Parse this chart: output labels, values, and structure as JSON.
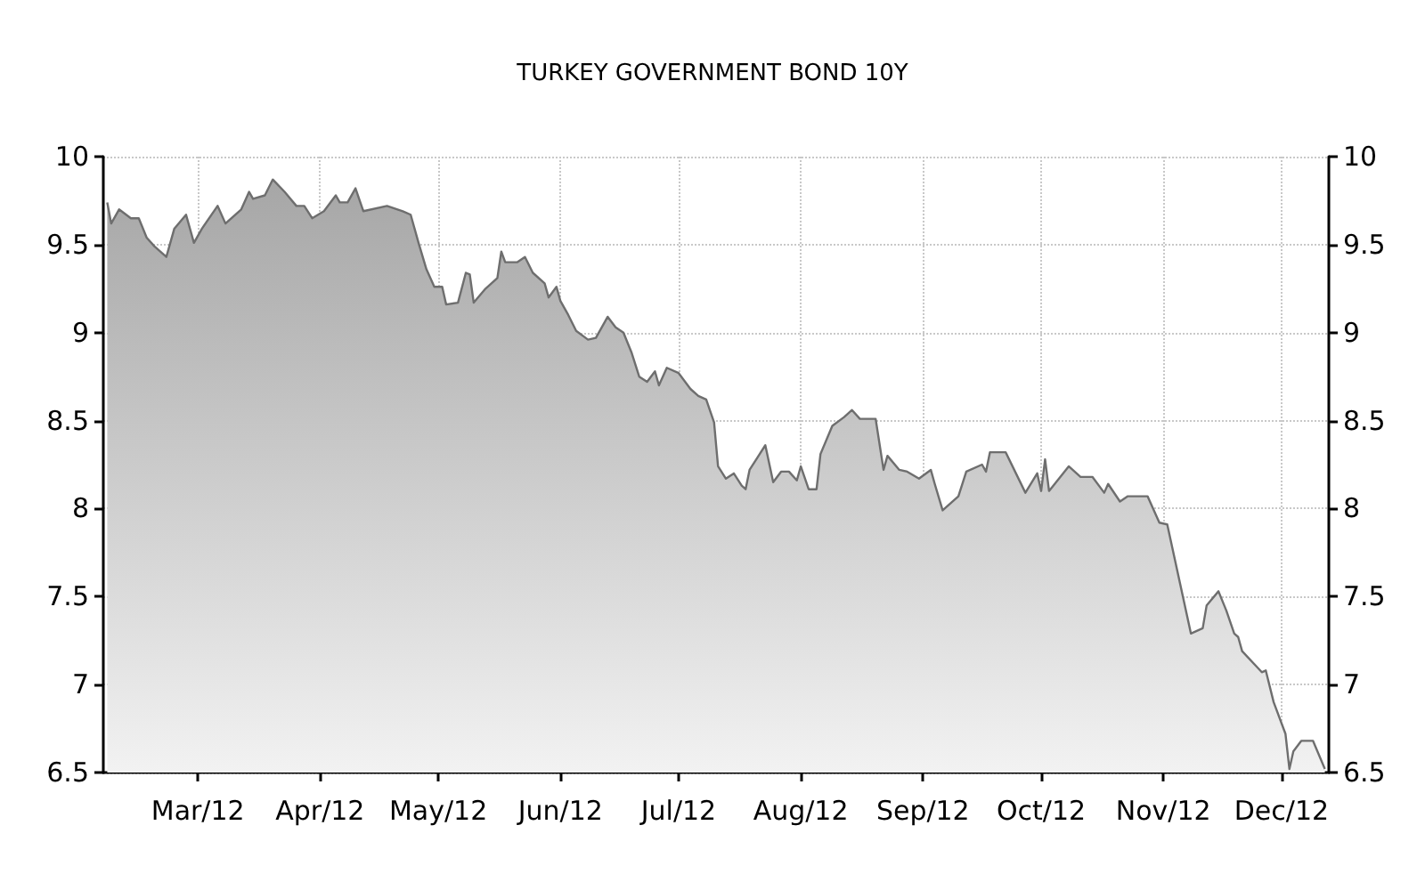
{
  "chart_data": {
    "type": "area",
    "title": "TURKEY GOVERNMENT BOND 10Y",
    "x": [
      "2012-02-07",
      "2012-02-08",
      "2012-02-10",
      "2012-02-13",
      "2012-02-15",
      "2012-02-17",
      "2012-02-19",
      "2012-02-22",
      "2012-02-24",
      "2012-02-27",
      "2012-02-29",
      "2012-03-02",
      "2012-03-06",
      "2012-03-08",
      "2012-03-12",
      "2012-03-14",
      "2012-03-15",
      "2012-03-18",
      "2012-03-20",
      "2012-03-23",
      "2012-03-26",
      "2012-03-28",
      "2012-03-30",
      "2012-04-02",
      "2012-04-05",
      "2012-04-06",
      "2012-04-08",
      "2012-04-10",
      "2012-04-12",
      "2012-04-18",
      "2012-04-22",
      "2012-04-24",
      "2012-04-26",
      "2012-04-28",
      "2012-04-30",
      "2012-05-02",
      "2012-05-03",
      "2012-05-06",
      "2012-05-08",
      "2012-05-09",
      "2012-05-10",
      "2012-05-13",
      "2012-05-16",
      "2012-05-17",
      "2012-05-18",
      "2012-05-21",
      "2012-05-23",
      "2012-05-25",
      "2012-05-28",
      "2012-05-29",
      "2012-05-31",
      "2012-06-01",
      "2012-06-03",
      "2012-06-05",
      "2012-06-08",
      "2012-06-10",
      "2012-06-13",
      "2012-06-15",
      "2012-06-17",
      "2012-06-19",
      "2012-06-21",
      "2012-06-23",
      "2012-06-25",
      "2012-06-26",
      "2012-06-28",
      "2012-07-01",
      "2012-07-04",
      "2012-07-06",
      "2012-07-08",
      "2012-07-10",
      "2012-07-11",
      "2012-07-13",
      "2012-07-15",
      "2012-07-17",
      "2012-07-18",
      "2012-07-19",
      "2012-07-21",
      "2012-07-23",
      "2012-07-25",
      "2012-07-27",
      "2012-07-29",
      "2012-07-31",
      "2012-08-01",
      "2012-08-03",
      "2012-08-05",
      "2012-08-06",
      "2012-08-09",
      "2012-08-12",
      "2012-08-14",
      "2012-08-16",
      "2012-08-20",
      "2012-08-22",
      "2012-08-23",
      "2012-08-26",
      "2012-08-28",
      "2012-08-31",
      "2012-09-03",
      "2012-09-04",
      "2012-09-06",
      "2012-09-10",
      "2012-09-12",
      "2012-09-16",
      "2012-09-17",
      "2012-09-18",
      "2012-09-22",
      "2012-09-27",
      "2012-09-30",
      "2012-10-01",
      "2012-10-02",
      "2012-10-03",
      "2012-10-08",
      "2012-10-11",
      "2012-10-14",
      "2012-10-17",
      "2012-10-18",
      "2012-10-21",
      "2012-10-23",
      "2012-10-28",
      "2012-10-31",
      "2012-11-02",
      "2012-11-08",
      "2012-11-11",
      "2012-11-12",
      "2012-11-15",
      "2012-11-17",
      "2012-11-19",
      "2012-11-20",
      "2012-11-21",
      "2012-11-26",
      "2012-11-27",
      "2012-11-29",
      "2012-12-02",
      "2012-12-03",
      "2012-12-04",
      "2012-12-06",
      "2012-12-09",
      "2012-12-12"
    ],
    "series": [
      {
        "color": "#6e6e6e",
        "values": [
          9.74,
          9.62,
          9.7,
          9.65,
          9.65,
          9.54,
          9.49,
          9.43,
          9.59,
          9.67,
          9.51,
          9.59,
          9.72,
          9.62,
          9.7,
          9.8,
          9.76,
          9.78,
          9.87,
          9.8,
          9.72,
          9.72,
          9.65,
          9.69,
          9.78,
          9.74,
          9.74,
          9.82,
          9.69,
          9.72,
          9.69,
          9.67,
          9.51,
          9.36,
          9.26,
          9.26,
          9.16,
          9.17,
          9.34,
          9.33,
          9.17,
          9.25,
          9.31,
          9.46,
          9.4,
          9.4,
          9.43,
          9.34,
          9.28,
          9.2,
          9.26,
          9.18,
          9.1,
          9.01,
          8.96,
          8.97,
          9.09,
          9.03,
          9.0,
          8.89,
          8.75,
          8.72,
          8.78,
          8.7,
          8.8,
          8.77,
          8.68,
          8.64,
          8.62,
          8.49,
          8.24,
          8.17,
          8.2,
          8.13,
          8.11,
          8.22,
          8.29,
          8.36,
          8.15,
          8.21,
          8.21,
          8.16,
          8.24,
          8.11,
          8.11,
          8.31,
          8.47,
          8.52,
          8.56,
          8.51,
          8.51,
          8.22,
          8.3,
          8.22,
          8.21,
          8.17,
          8.22,
          8.14,
          7.99,
          8.07,
          8.21,
          8.25,
          8.21,
          8.32,
          8.32,
          8.09,
          8.2,
          8.1,
          8.28,
          8.1,
          8.24,
          8.18,
          8.18,
          8.09,
          8.14,
          8.04,
          8.07,
          8.07,
          7.92,
          7.91,
          7.29,
          7.32,
          7.45,
          7.53,
          7.42,
          7.29,
          7.27,
          7.19,
          7.07,
          7.08,
          6.9,
          6.72,
          6.52,
          6.62,
          6.68,
          6.68,
          6.52
        ]
      }
    ],
    "xlim": [
      "2012-02-06",
      "2012-12-13"
    ],
    "xticks": [
      {
        "value": "2012-03-01",
        "label": "Mar/12"
      },
      {
        "value": "2012-04-01",
        "label": "Apr/12"
      },
      {
        "value": "2012-05-01",
        "label": "May/12"
      },
      {
        "value": "2012-06-01",
        "label": "Jun/12"
      },
      {
        "value": "2012-07-01",
        "label": "Jul/12"
      },
      {
        "value": "2012-08-01",
        "label": "Aug/12"
      },
      {
        "value": "2012-09-01",
        "label": "Sep/12"
      },
      {
        "value": "2012-10-01",
        "label": "Oct/12"
      },
      {
        "value": "2012-11-01",
        "label": "Nov/12"
      },
      {
        "value": "2012-12-01",
        "label": "Dec/12"
      }
    ],
    "ylim": [
      6.5,
      10
    ],
    "yticks": [
      6.5,
      7,
      7.5,
      8,
      8.5,
      9,
      9.5,
      10
    ],
    "y2lim": [
      6.5,
      10
    ],
    "y2ticks": [
      6.5,
      7,
      7.5,
      8,
      8.5,
      9,
      9.5,
      10
    ],
    "grid": true,
    "marker": "none",
    "line_style": "solid"
  }
}
